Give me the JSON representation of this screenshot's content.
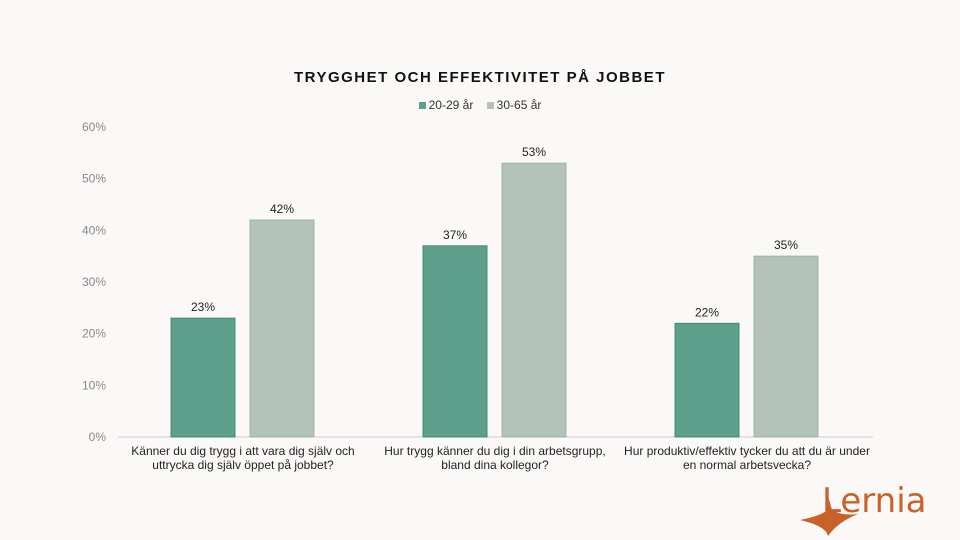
{
  "chart_data": {
    "type": "bar",
    "title": "TRYGGHET OCH EFFEKTIVITET PÅ JOBBET",
    "categories": [
      "Känner du dig trygg i att vara dig själv och uttrycka dig själv öppet på jobbet?",
      "Hur trygg känner du dig i din arbetsgrupp, bland dina kollegor?",
      "Hur produktiv/effektiv tycker du att du är under en normal arbetsvecka?"
    ],
    "series": [
      {
        "name": "20-29 år",
        "color": "#5e9f8c",
        "values": [
          23,
          37,
          22
        ]
      },
      {
        "name": "30-65 år",
        "color": "#b3c3bb",
        "values": [
          42,
          53,
          35
        ]
      }
    ],
    "ylim": [
      0,
      60
    ],
    "yticks": [
      "0%",
      "10%",
      "20%",
      "30%",
      "40%",
      "50%",
      "60%"
    ],
    "legend": "top-center",
    "grid": false
  },
  "logo": {
    "text": "Lernia",
    "color": "#c8622a"
  }
}
